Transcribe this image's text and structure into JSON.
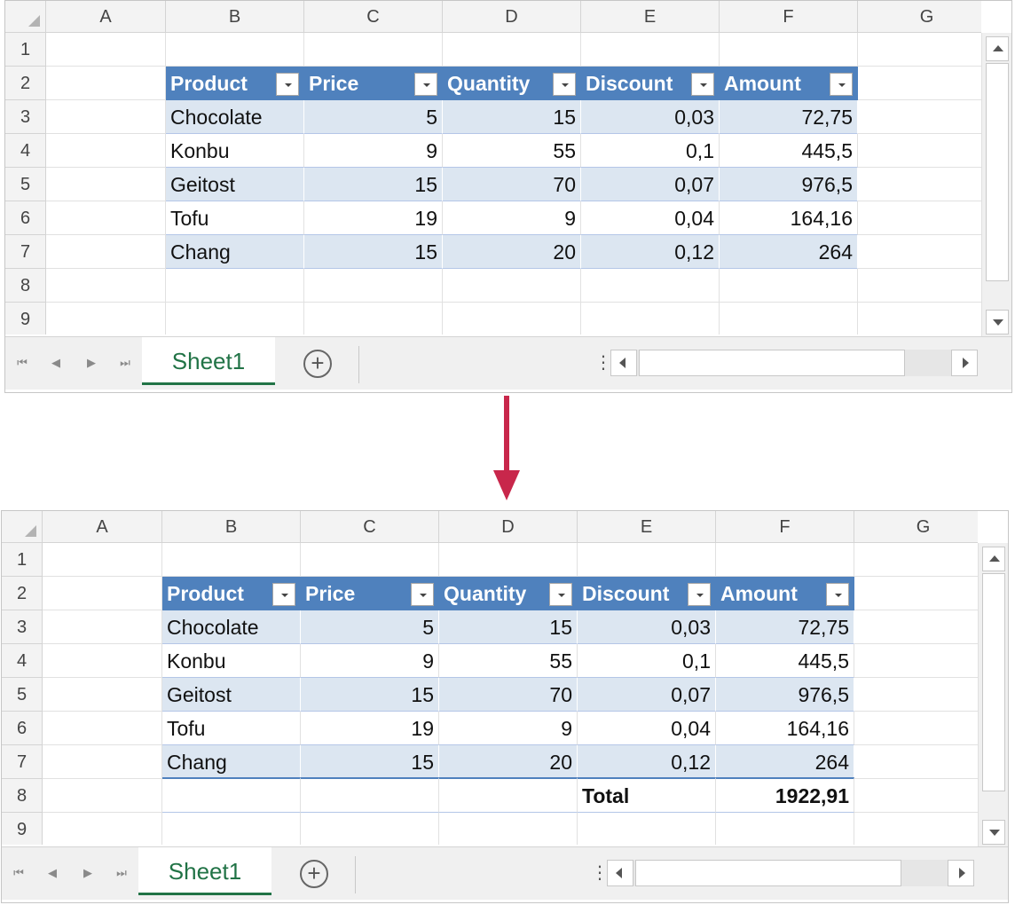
{
  "columns": [
    "A",
    "B",
    "C",
    "D",
    "E",
    "F",
    "G"
  ],
  "rows": [
    "1",
    "2",
    "3",
    "4",
    "5",
    "6",
    "7",
    "8",
    "9"
  ],
  "table": {
    "headers": [
      "Product",
      "Price",
      "Quantity",
      "Discount",
      "Amount"
    ],
    "rows": [
      [
        "Chocolate",
        "5",
        "15",
        "0,03",
        "72,75"
      ],
      [
        "Konbu",
        "9",
        "55",
        "0,1",
        "445,5"
      ],
      [
        "Geitost",
        "15",
        "70",
        "0,07",
        "976,5"
      ],
      [
        "Tofu",
        "19",
        "9",
        "0,04",
        "164,16"
      ],
      [
        "Chang",
        "15",
        "20",
        "0,12",
        "264"
      ]
    ],
    "total_label": "Total",
    "total_value": "1922,91"
  },
  "sheet_tab_label": "Sheet1",
  "add_sheet_glyph": "+",
  "nav_glyphs": [
    "⏮",
    "◀",
    "▶",
    "⏭"
  ],
  "colors": {
    "table_header": "#4f81bd",
    "band": "#dce6f1",
    "active_tab": "#217346",
    "arrow": "#c8274b"
  },
  "icons": [
    "select-all-icon",
    "filter-dropdown-icon",
    "add-sheet-icon",
    "scroll-arrow-icon",
    "down-arrow-icon"
  ]
}
